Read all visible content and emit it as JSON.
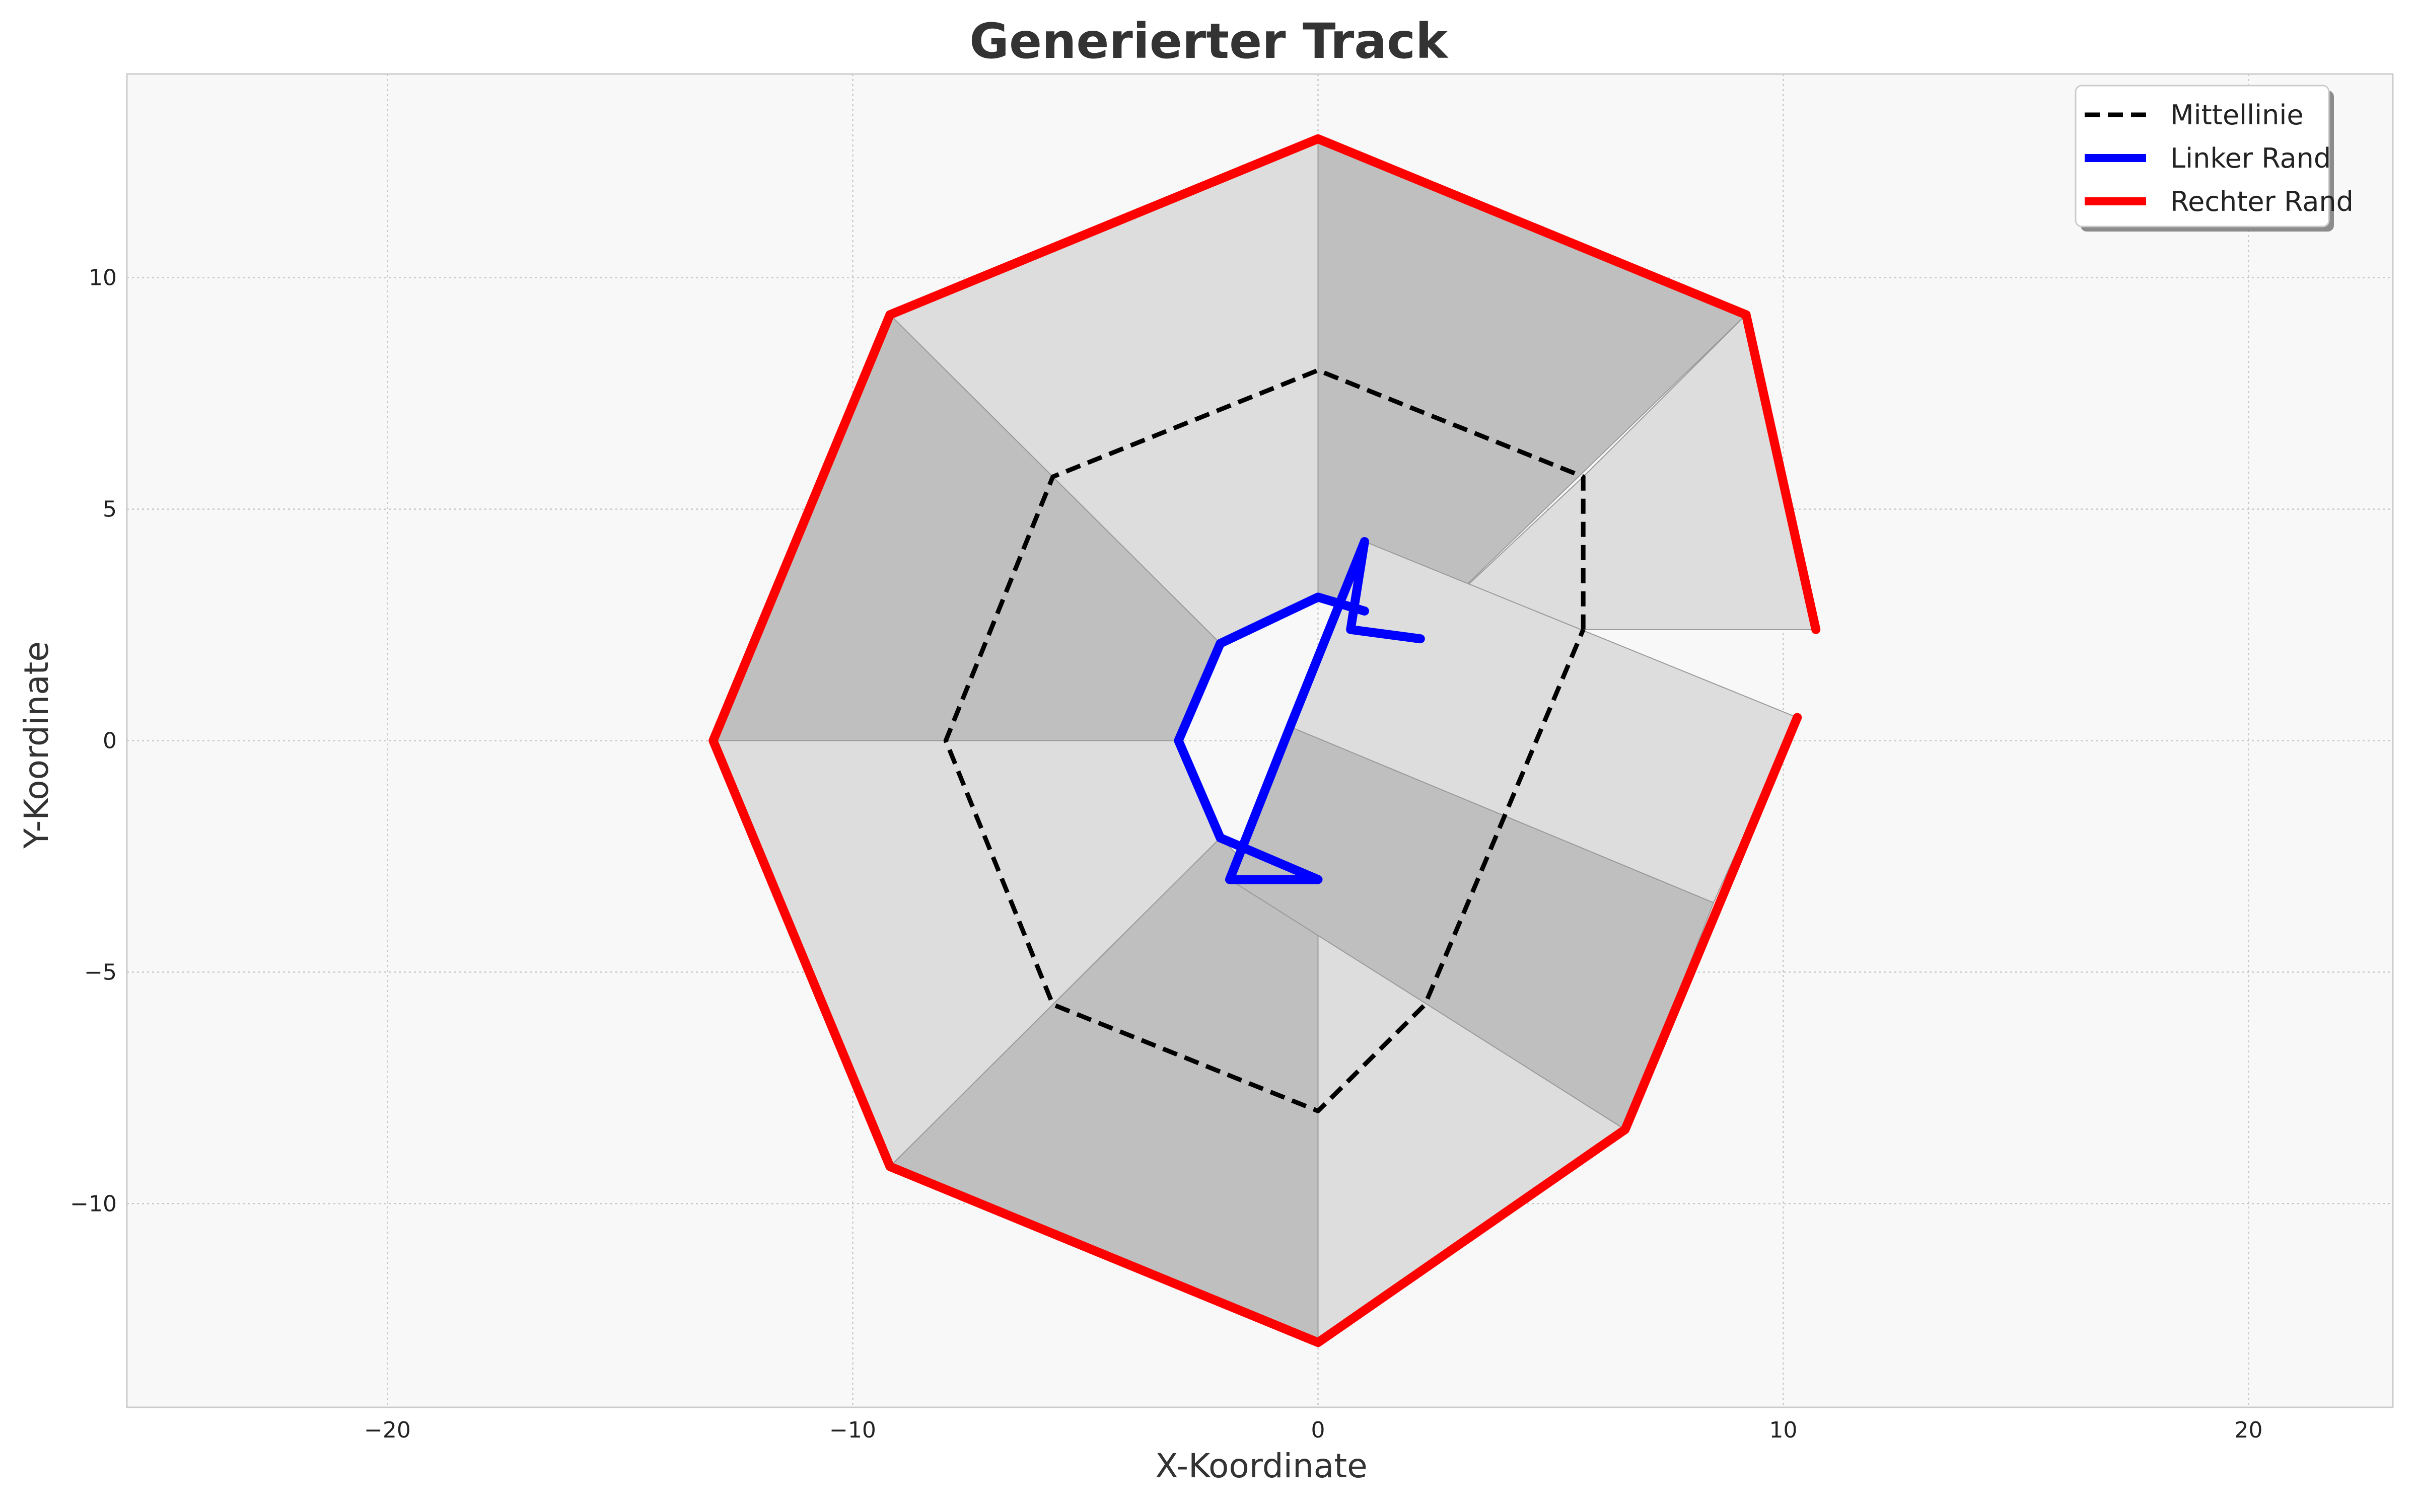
{
  "chart_data": {
    "type": "line",
    "title": "Generierter Track",
    "xlabel": "X-Koordinate",
    "ylabel": "Y-Koordinate",
    "xlim": [
      -25.6,
      23.1
    ],
    "ylim": [
      -14.4,
      14.4
    ],
    "xticks": [
      -20,
      -10,
      0,
      10,
      20
    ],
    "yticks": [
      -10,
      -5,
      0,
      5,
      10
    ],
    "xtick_labels": [
      "−20",
      "−10",
      "0",
      "10",
      "20"
    ],
    "ytick_labels": [
      "−10",
      "−5",
      "0",
      "5",
      "10"
    ],
    "grid": true,
    "legend_position": "top-right",
    "series": [
      {
        "name": "Mittellinie",
        "color": "#000000",
        "style": "dashed",
        "x": [
          5.7,
          5.7,
          0,
          -5.7,
          -8.0,
          -5.7,
          0,
          2.3,
          5.7
        ],
        "y": [
          2.4,
          5.7,
          8.0,
          5.7,
          0,
          -5.7,
          -8.0,
          -5.7,
          2.4
        ]
      },
      {
        "name": "Linker Rand",
        "color": "#0000ff",
        "style": "solid",
        "x": [
          2.2,
          0.7,
          1.0,
          -0.6,
          -1.9,
          0,
          0,
          -2.1,
          -3.0,
          -2.1,
          0,
          1.0
        ],
        "y": [
          2.2,
          2.4,
          4.3,
          0.3,
          -3.0,
          -3.0,
          -3.0,
          -2.1,
          0,
          2.1,
          3.1,
          2.8
        ]
      },
      {
        "name": "Rechter Rand",
        "color": "#ff0000",
        "style": "solid",
        "x": [
          10.7,
          9.2,
          0,
          -9.2,
          -13.0,
          -9.2,
          0,
          6.6,
          10.3
        ],
        "y": [
          2.4,
          9.2,
          13.0,
          9.2,
          0,
          -9.2,
          -13.0,
          -8.4,
          0.5
        ]
      }
    ]
  },
  "fill": {
    "light_color": "#dddddd",
    "dark_color": "#bfbfbf",
    "quads": [
      {
        "shade": "light",
        "x": [
          10.7,
          9.2,
          5.7,
          2.2
        ],
        "y": [
          2.4,
          9.2,
          5.7,
          2.4
        ]
      },
      {
        "shade": "dark",
        "x": [
          9.2,
          0,
          0,
          2.2
        ],
        "y": [
          9.2,
          13.0,
          3.1,
          2.4
        ]
      },
      {
        "shade": "light",
        "x": [
          0,
          -9.2,
          -2.1,
          0
        ],
        "y": [
          13.0,
          9.2,
          2.1,
          3.1
        ]
      },
      {
        "shade": "dark",
        "x": [
          -9.2,
          -13.0,
          -3.0,
          -2.1
        ],
        "y": [
          9.2,
          0,
          0,
          2.1
        ]
      },
      {
        "shade": "light",
        "x": [
          -13.0,
          -9.2,
          -2.1,
          -3.0
        ],
        "y": [
          0,
          -9.2,
          -2.1,
          0
        ]
      },
      {
        "shade": "dark",
        "x": [
          -9.2,
          0,
          0,
          -2.1
        ],
        "y": [
          -9.2,
          -13.0,
          -4.2,
          -2.1
        ]
      },
      {
        "shade": "light",
        "x": [
          0,
          6.6,
          0,
          0
        ],
        "y": [
          -13.0,
          -8.4,
          -4.2,
          -4.2
        ]
      },
      {
        "shade": "dark",
        "x": [
          6.6,
          8.5,
          -0.6,
          -1.9
        ],
        "y": [
          -8.4,
          -3.5,
          0.3,
          -3.0
        ]
      },
      {
        "shade": "light",
        "x": [
          8.5,
          10.3,
          1.0,
          -0.6
        ],
        "y": [
          -3.5,
          0.5,
          4.3,
          0.3
        ]
      }
    ]
  }
}
